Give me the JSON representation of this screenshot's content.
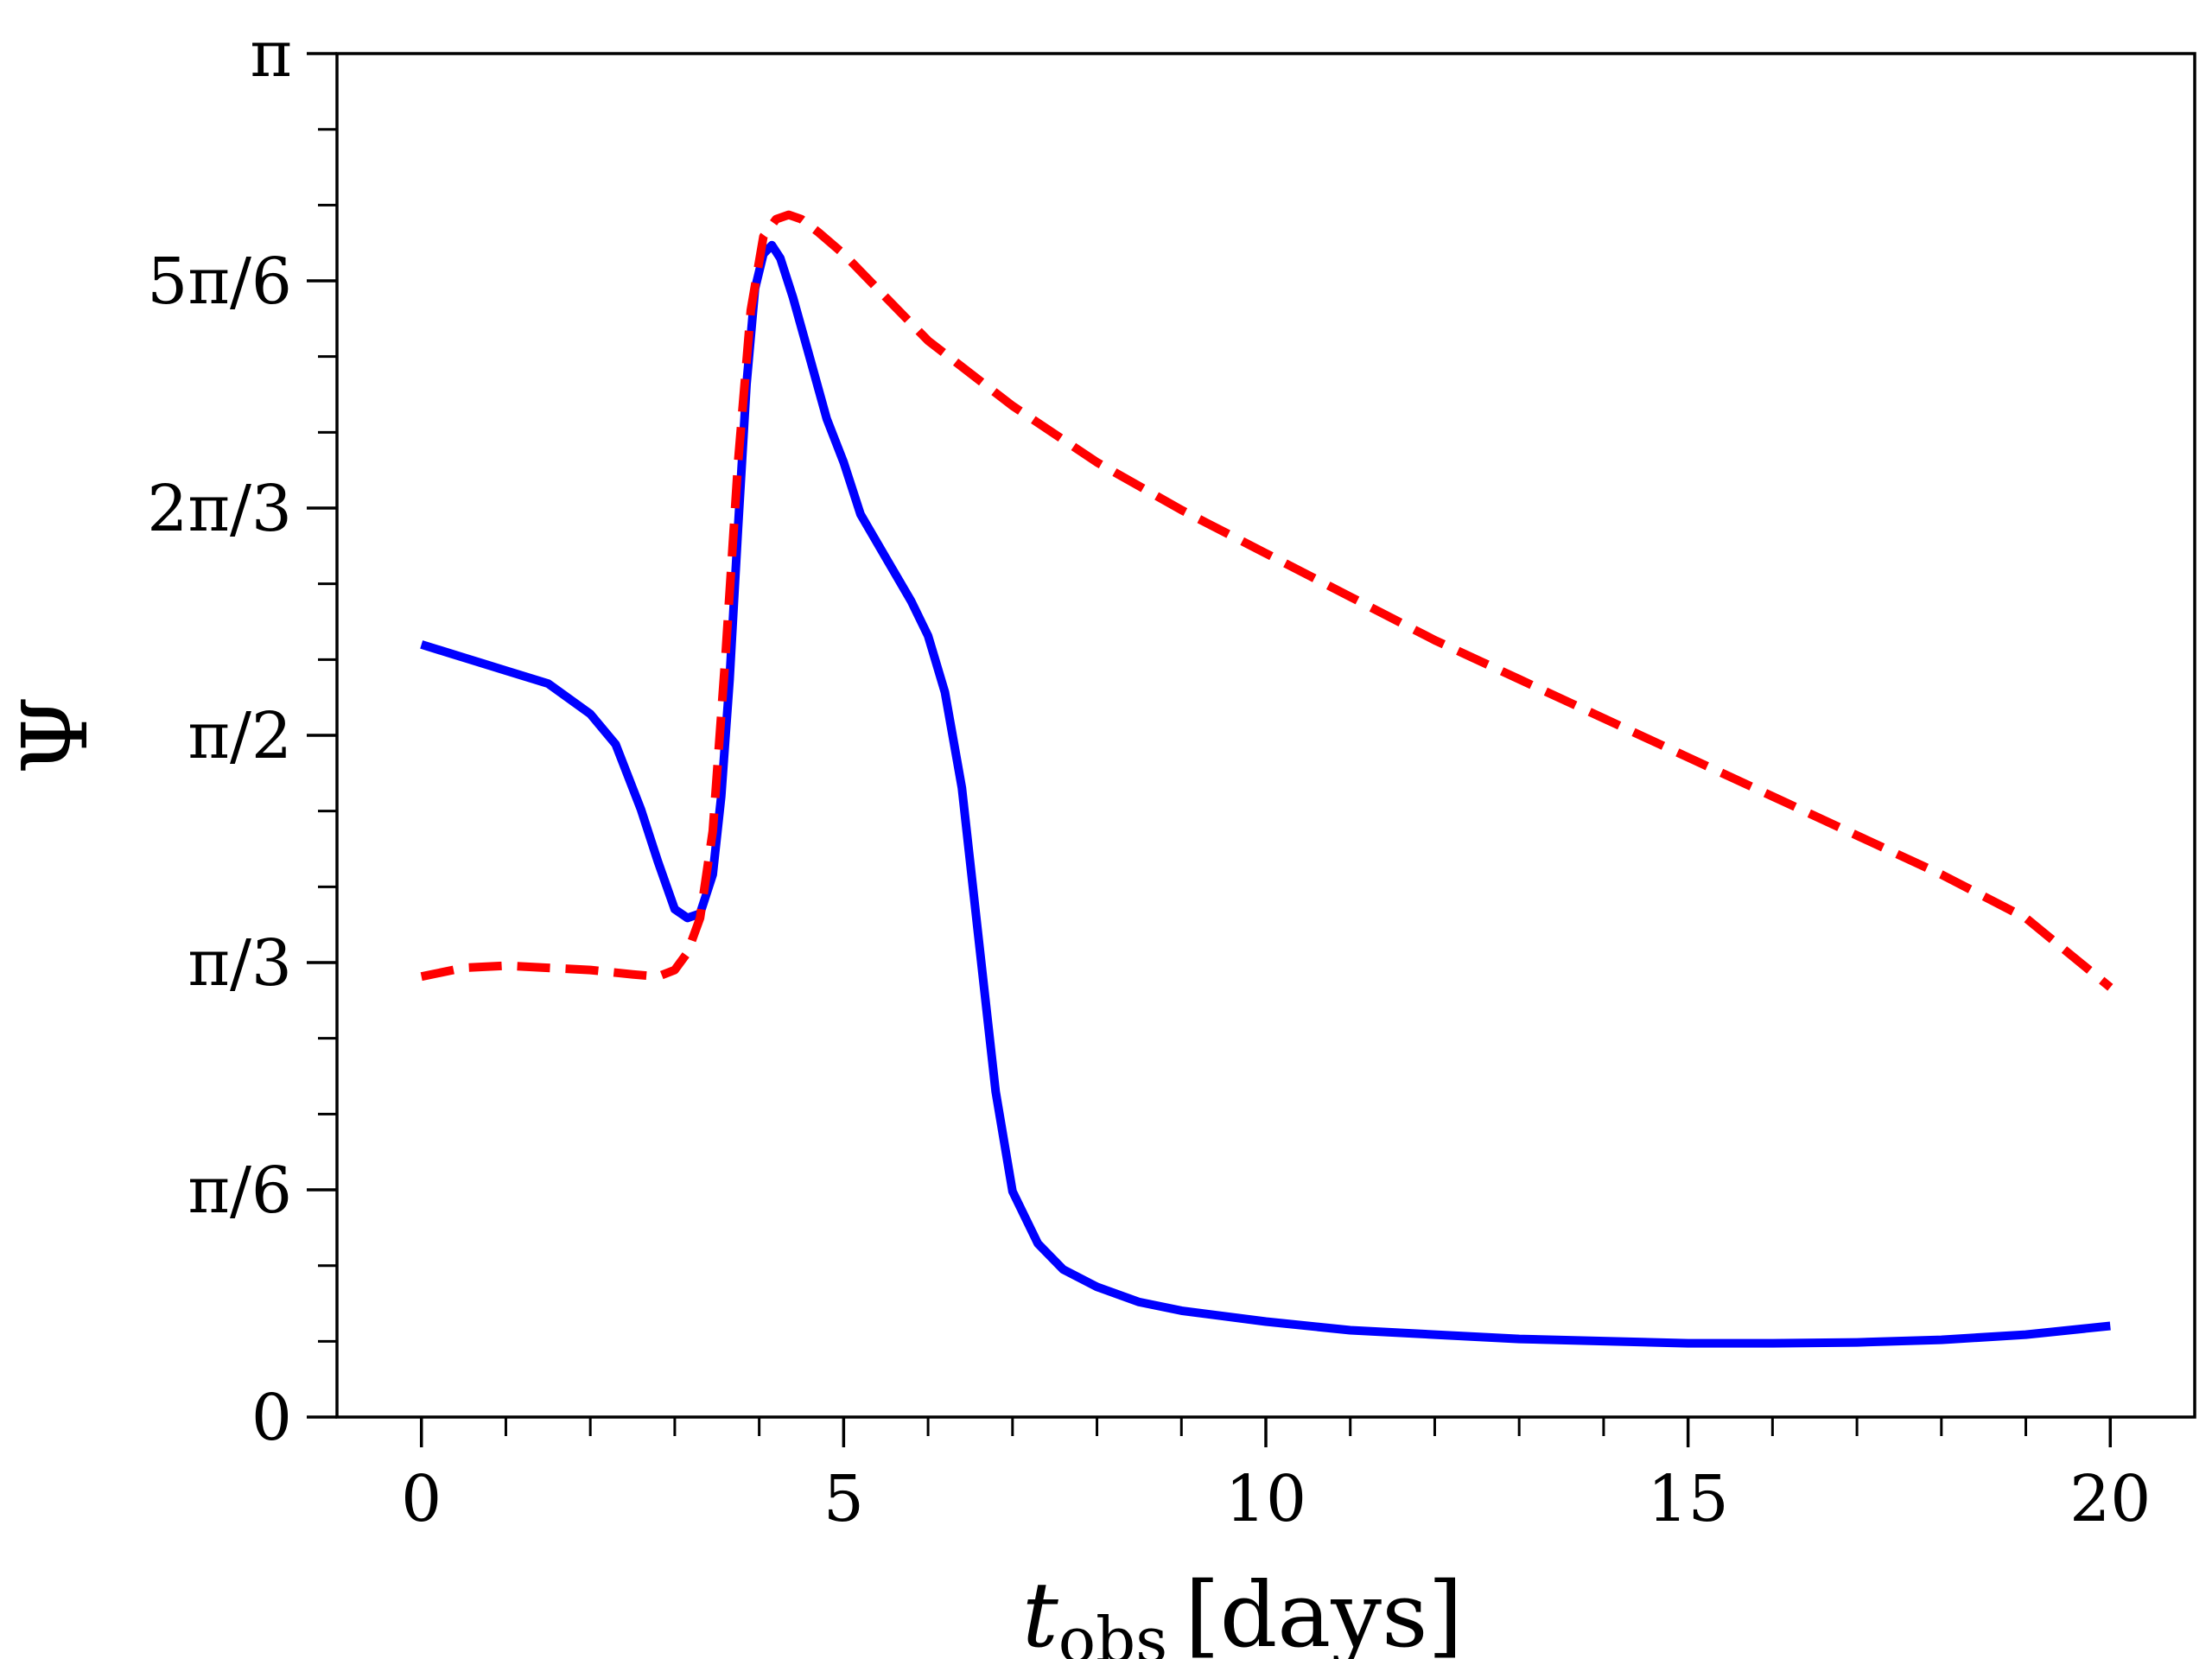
{
  "chart_data": {
    "type": "line",
    "title": "",
    "xlabel_main": "t",
    "xlabel_sub": "obs",
    "xlabel_unit": "[days]",
    "ylabel": "Ψ",
    "xlim": [
      -1,
      21
    ],
    "ylim": [
      0,
      3.14159
    ],
    "grid": false,
    "legend": "none",
    "x_ticks": [
      {
        "value": 0,
        "label": "0"
      },
      {
        "value": 5,
        "label": "5"
      },
      {
        "value": 10,
        "label": "10"
      },
      {
        "value": 15,
        "label": "15"
      },
      {
        "value": 20,
        "label": "20"
      }
    ],
    "x_minor_ticks": [
      1,
      2,
      3,
      4,
      6,
      7,
      8,
      9,
      11,
      12,
      13,
      14,
      16,
      17,
      18,
      19
    ],
    "y_ticks": [
      {
        "value": 0,
        "label": "0"
      },
      {
        "value": 0.5236,
        "label": "π/6"
      },
      {
        "value": 1.0472,
        "label": "π/3"
      },
      {
        "value": 1.5708,
        "label": "π/2"
      },
      {
        "value": 2.0944,
        "label": "2π/3"
      },
      {
        "value": 2.618,
        "label": "5π/6"
      },
      {
        "value": 3.14159,
        "label": "π"
      }
    ],
    "y_minor_ticks": [
      0.1745,
      0.349,
      0.6981,
      0.8727,
      1.2217,
      1.3963,
      1.7453,
      1.9199,
      2.2689,
      2.4435,
      2.7925,
      2.967
    ],
    "series": [
      {
        "name": "solid",
        "color": "#0000ff",
        "style": "solid",
        "x": [
          0,
          0.5,
          1,
          1.5,
          2,
          2.3,
          2.6,
          2.8,
          3.0,
          3.15,
          3.3,
          3.45,
          3.55,
          3.65,
          3.75,
          3.85,
          3.95,
          4.05,
          4.15,
          4.25,
          4.4,
          4.6,
          4.8,
          5.0,
          5.2,
          5.5,
          5.8,
          6.0,
          6.2,
          6.4,
          6.6,
          6.8,
          7.0,
          7.3,
          7.6,
          8.0,
          8.5,
          9,
          10,
          11,
          12,
          13,
          14,
          15,
          16,
          17,
          18,
          19,
          20
        ],
        "y": [
          1.78,
          1.75,
          1.72,
          1.69,
          1.62,
          1.55,
          1.4,
          1.28,
          1.17,
          1.15,
          1.16,
          1.25,
          1.43,
          1.7,
          2.05,
          2.38,
          2.6,
          2.68,
          2.7,
          2.67,
          2.58,
          2.44,
          2.3,
          2.2,
          2.08,
          1.98,
          1.88,
          1.8,
          1.67,
          1.45,
          1.1,
          0.75,
          0.52,
          0.4,
          0.34,
          0.3,
          0.265,
          0.245,
          0.22,
          0.2,
          0.19,
          0.18,
          0.175,
          0.17,
          0.17,
          0.172,
          0.178,
          0.19,
          0.21
        ]
      },
      {
        "name": "dashed",
        "color": "#ff0000",
        "style": "dashed",
        "x": [
          0,
          0.5,
          1,
          1.5,
          2,
          2.5,
          2.8,
          3.0,
          3.15,
          3.3,
          3.45,
          3.6,
          3.75,
          3.9,
          4.05,
          4.2,
          4.35,
          4.5,
          4.7,
          5.0,
          5.5,
          6,
          7,
          8,
          9,
          10,
          11,
          12,
          13,
          14,
          15,
          16,
          17,
          18,
          19,
          20
        ],
        "y": [
          1.015,
          1.035,
          1.04,
          1.035,
          1.03,
          1.02,
          1.015,
          1.03,
          1.07,
          1.15,
          1.35,
          1.75,
          2.2,
          2.55,
          2.72,
          2.76,
          2.77,
          2.76,
          2.73,
          2.68,
          2.58,
          2.48,
          2.33,
          2.2,
          2.09,
          1.99,
          1.89,
          1.79,
          1.7,
          1.61,
          1.52,
          1.43,
          1.34,
          1.25,
          1.15,
          0.99
        ]
      }
    ]
  }
}
